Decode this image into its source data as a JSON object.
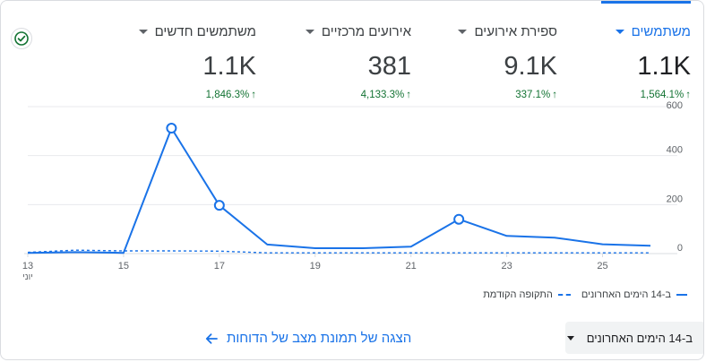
{
  "metrics": [
    {
      "label": "משתמשים",
      "value": "1.1K",
      "change": "1,564.1%",
      "active": true
    },
    {
      "label": "ספירת אירועים",
      "value": "9.1K",
      "change": "337.1%",
      "active": false
    },
    {
      "label": "אירועים מרכזיים",
      "value": "381",
      "change": "4,133.3%",
      "active": false
    },
    {
      "label": "משתמשים חדשים",
      "value": "1.1K",
      "change": "1,846.3%",
      "active": false
    }
  ],
  "legend": {
    "current": "ב-14 הימים האחרונים",
    "previous": "התקופה הקודמת"
  },
  "report_link": "הצגה של תמונת מצב של הדוחות",
  "date_range": "ב-14 הימים האחרונים",
  "icons": {
    "status": "check-circle-icon",
    "link": "arrow-left-icon"
  },
  "colors": {
    "accent": "#1a73e8",
    "positive": "#137333"
  },
  "chart_data": {
    "type": "line",
    "x_ticks": [
      "13",
      "15",
      "17",
      "19",
      "21",
      "23",
      "25"
    ],
    "x_first_sublabel": "יוני",
    "y_ticks": [
      0,
      200,
      400,
      600
    ],
    "ylim": [
      0,
      600
    ],
    "series": [
      {
        "name": "ב-14 הימים האחרונים",
        "style": "solid",
        "x": [
          13,
          14,
          15,
          16,
          17,
          18,
          19,
          20,
          21,
          22,
          23,
          24,
          25,
          26
        ],
        "y": [
          3,
          6,
          3,
          512,
          197,
          37,
          22,
          22,
          28,
          140,
          72,
          65,
          38,
          32
        ],
        "markers": [
          16,
          17,
          22
        ]
      },
      {
        "name": "התקופה הקודמת",
        "style": "dashed",
        "x": [
          13,
          14,
          15,
          16,
          17,
          18,
          19,
          20,
          21,
          22,
          23,
          24,
          25,
          26
        ],
        "y": [
          5,
          14,
          11,
          11,
          10,
          3,
          3,
          3,
          3,
          3,
          3,
          3,
          3,
          3
        ]
      }
    ]
  }
}
